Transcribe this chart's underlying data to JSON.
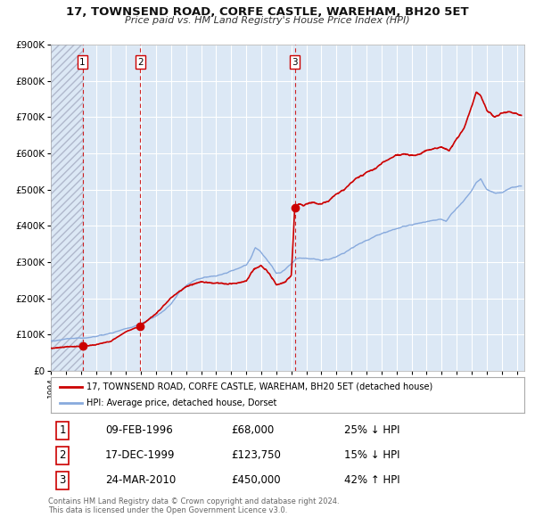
{
  "title": "17, TOWNSEND ROAD, CORFE CASTLE, WAREHAM, BH20 5ET",
  "subtitle": "Price paid vs. HM Land Registry's House Price Index (HPI)",
  "sale_year_decimals": [
    1996.109,
    1999.959,
    2010.228
  ],
  "sale_prices": [
    68000,
    123750,
    450000
  ],
  "sale_labels": [
    "1",
    "2",
    "3"
  ],
  "legend_line1": "17, TOWNSEND ROAD, CORFE CASTLE, WAREHAM, BH20 5ET (detached house)",
  "legend_line2": "HPI: Average price, detached house, Dorset",
  "table_rows": [
    [
      "1",
      "09-FEB-1996",
      "£68,000",
      "25% ↓ HPI"
    ],
    [
      "2",
      "17-DEC-1999",
      "£123,750",
      "15% ↓ HPI"
    ],
    [
      "3",
      "24-MAR-2010",
      "£450,000",
      "42% ↑ HPI"
    ]
  ],
  "footer1": "Contains HM Land Registry data © Crown copyright and database right 2024.",
  "footer2": "This data is licensed under the Open Government Licence v3.0.",
  "price_line_color": "#cc0000",
  "hpi_line_color": "#88aadd",
  "sale_dot_color": "#cc0000",
  "vline_color": "#cc0000",
  "plot_bg_color": "#dce8f5",
  "fig_bg_color": "#ffffff",
  "grid_color": "#ffffff",
  "ylim": [
    0,
    900000
  ],
  "xlim_start": 1994.0,
  "xlim_end": 2025.5,
  "hpi_anchors": [
    [
      1994.0,
      82000
    ],
    [
      1994.5,
      85000
    ],
    [
      1995.0,
      88000
    ],
    [
      1995.5,
      90000
    ],
    [
      1996.0,
      90500
    ],
    [
      1996.5,
      91000
    ],
    [
      1997.0,
      95000
    ],
    [
      1997.5,
      99000
    ],
    [
      1998.0,
      104000
    ],
    [
      1998.5,
      110000
    ],
    [
      1999.0,
      116000
    ],
    [
      1999.5,
      122000
    ],
    [
      2000.0,
      130000
    ],
    [
      2000.5,
      140000
    ],
    [
      2001.0,
      152000
    ],
    [
      2001.5,
      165000
    ],
    [
      2002.0,
      185000
    ],
    [
      2002.5,
      215000
    ],
    [
      2003.0,
      235000
    ],
    [
      2003.5,
      248000
    ],
    [
      2004.0,
      256000
    ],
    [
      2004.5,
      260000
    ],
    [
      2005.0,
      262000
    ],
    [
      2005.5,
      268000
    ],
    [
      2006.0,
      275000
    ],
    [
      2006.5,
      283000
    ],
    [
      2007.0,
      292000
    ],
    [
      2007.3,
      310000
    ],
    [
      2007.6,
      340000
    ],
    [
      2007.9,
      330000
    ],
    [
      2008.3,
      310000
    ],
    [
      2008.7,
      290000
    ],
    [
      2009.0,
      268000
    ],
    [
      2009.3,
      272000
    ],
    [
      2009.6,
      280000
    ],
    [
      2010.0,
      295000
    ],
    [
      2010.3,
      308000
    ],
    [
      2010.6,
      312000
    ],
    [
      2011.0,
      310000
    ],
    [
      2011.5,
      308000
    ],
    [
      2012.0,
      305000
    ],
    [
      2012.5,
      308000
    ],
    [
      2013.0,
      315000
    ],
    [
      2013.5,
      325000
    ],
    [
      2014.0,
      338000
    ],
    [
      2014.5,
      350000
    ],
    [
      2015.0,
      360000
    ],
    [
      2015.5,
      370000
    ],
    [
      2016.0,
      378000
    ],
    [
      2016.5,
      385000
    ],
    [
      2017.0,
      392000
    ],
    [
      2017.5,
      398000
    ],
    [
      2018.0,
      403000
    ],
    [
      2018.5,
      408000
    ],
    [
      2019.0,
      412000
    ],
    [
      2019.5,
      415000
    ],
    [
      2020.0,
      418000
    ],
    [
      2020.3,
      412000
    ],
    [
      2020.6,
      430000
    ],
    [
      2021.0,
      448000
    ],
    [
      2021.5,
      470000
    ],
    [
      2022.0,
      498000
    ],
    [
      2022.3,
      520000
    ],
    [
      2022.6,
      530000
    ],
    [
      2022.8,
      515000
    ],
    [
      2023.0,
      500000
    ],
    [
      2023.3,
      495000
    ],
    [
      2023.6,
      490000
    ],
    [
      2024.0,
      492000
    ],
    [
      2024.3,
      498000
    ],
    [
      2024.6,
      505000
    ],
    [
      2025.0,
      508000
    ],
    [
      2025.3,
      510000
    ]
  ],
  "prop_anchors_seg0": [
    [
      1994.0,
      62000
    ],
    [
      1994.5,
      64000
    ],
    [
      1995.0,
      66000
    ],
    [
      1995.5,
      67000
    ],
    [
      1996.109,
      68000
    ]
  ],
  "prop_anchors_seg1": [
    [
      1996.109,
      68000
    ],
    [
      1997.0,
      72000
    ],
    [
      1998.0,
      82000
    ],
    [
      1999.0,
      108000
    ],
    [
      1999.959,
      123750
    ]
  ],
  "prop_anchors_seg2": [
    [
      1999.959,
      123750
    ],
    [
      2001.0,
      158000
    ],
    [
      2002.0,
      202000
    ],
    [
      2003.0,
      233000
    ],
    [
      2004.0,
      245000
    ],
    [
      2005.0,
      242000
    ],
    [
      2006.0,
      240000
    ],
    [
      2007.0,
      248000
    ],
    [
      2007.5,
      280000
    ],
    [
      2008.0,
      290000
    ],
    [
      2008.5,
      270000
    ],
    [
      2009.0,
      238000
    ],
    [
      2009.5,
      242000
    ],
    [
      2010.0,
      262000
    ],
    [
      2010.228,
      450000
    ]
  ],
  "prop_anchors_seg3": [
    [
      2010.228,
      450000
    ],
    [
      2010.5,
      462000
    ],
    [
      2010.8,
      455000
    ],
    [
      2011.0,
      460000
    ],
    [
      2011.5,
      465000
    ],
    [
      2012.0,
      460000
    ],
    [
      2012.5,
      470000
    ],
    [
      2013.0,
      488000
    ],
    [
      2013.5,
      500000
    ],
    [
      2014.0,
      520000
    ],
    [
      2014.5,
      535000
    ],
    [
      2015.0,
      548000
    ],
    [
      2015.5,
      555000
    ],
    [
      2016.0,
      572000
    ],
    [
      2016.5,
      585000
    ],
    [
      2017.0,
      595000
    ],
    [
      2017.5,
      600000
    ],
    [
      2018.0,
      595000
    ],
    [
      2018.5,
      598000
    ],
    [
      2019.0,
      608000
    ],
    [
      2019.5,
      612000
    ],
    [
      2020.0,
      618000
    ],
    [
      2020.5,
      608000
    ],
    [
      2021.0,
      640000
    ],
    [
      2021.5,
      670000
    ],
    [
      2022.0,
      730000
    ],
    [
      2022.3,
      770000
    ],
    [
      2022.6,
      760000
    ],
    [
      2023.0,
      720000
    ],
    [
      2023.5,
      700000
    ],
    [
      2024.0,
      710000
    ],
    [
      2024.5,
      715000
    ],
    [
      2025.3,
      705000
    ]
  ]
}
